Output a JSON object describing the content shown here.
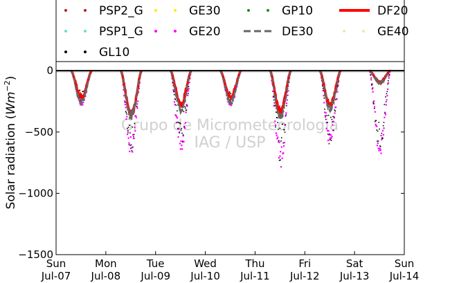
{
  "chart_data": {
    "type": "scatter",
    "title": "",
    "ylabel": "Solar radiation (Wm^-2)",
    "ylabel_parts": {
      "main": "Solar radiation (",
      "unit": "Wm",
      "exp": "−2",
      "close": ")"
    },
    "xlim": [
      "2013-07-07",
      "2013-07-14"
    ],
    "ylim": [
      -1500,
      80
    ],
    "yticks": [
      0,
      -500,
      -1000,
      -1500
    ],
    "ytick_labels": [
      "0",
      "−500",
      "−1000",
      "−1500"
    ],
    "xtick_labels": [
      {
        "day": "Sun",
        "date": "Jul-07"
      },
      {
        "day": "Mon",
        "date": "Jul-08"
      },
      {
        "day": "Tue",
        "date": "Jul-09"
      },
      {
        "day": "Wed",
        "date": "Jul-10"
      },
      {
        "day": "Thu",
        "date": "Jul-11"
      },
      {
        "day": "Fri",
        "date": "Jul-12"
      },
      {
        "day": "Sat",
        "date": "Jul-13"
      },
      {
        "day": "Sun",
        "date": "Jul-14"
      }
    ],
    "grid": false,
    "legend_position": "top",
    "zero_line": 0,
    "watermark": [
      "Grupo de Micrometeorologia",
      "IAG / USP"
    ],
    "series": [
      {
        "name": "PSP2_G",
        "color": "#b22222",
        "marker": "dot"
      },
      {
        "name": "GE30",
        "color": "#ffee00",
        "marker": "dot"
      },
      {
        "name": "GP10",
        "color": "#1e8c1e",
        "marker": "dot"
      },
      {
        "name": "DF20",
        "color": "#ff0000",
        "marker": "line"
      },
      {
        "name": "PSP1_G",
        "color": "#60e0d0",
        "marker": "dot"
      },
      {
        "name": "GE20",
        "color": "#ff00ff",
        "marker": "dot"
      },
      {
        "name": "DE30",
        "color": "#666666",
        "marker": "dash"
      },
      {
        "name": "GE40",
        "color": "#f0e8a0",
        "marker": "dot"
      },
      {
        "name": "GL10",
        "color": "#000000",
        "marker": "dot"
      }
    ],
    "daily_minima": {
      "days": [
        "Jul-07",
        "Jul-08",
        "Jul-09",
        "Jul-10",
        "Jul-11",
        "Jul-12",
        "Jul-13"
      ],
      "GE20": [
        -290,
        -700,
        -670,
        -300,
        -790,
        -640,
        -710
      ],
      "DF20": [
        -230,
        -380,
        -300,
        -230,
        -360,
        -300,
        -100
      ],
      "DE30": [
        -280,
        -400,
        -350,
        -280,
        -420,
        -340,
        -110
      ]
    }
  }
}
